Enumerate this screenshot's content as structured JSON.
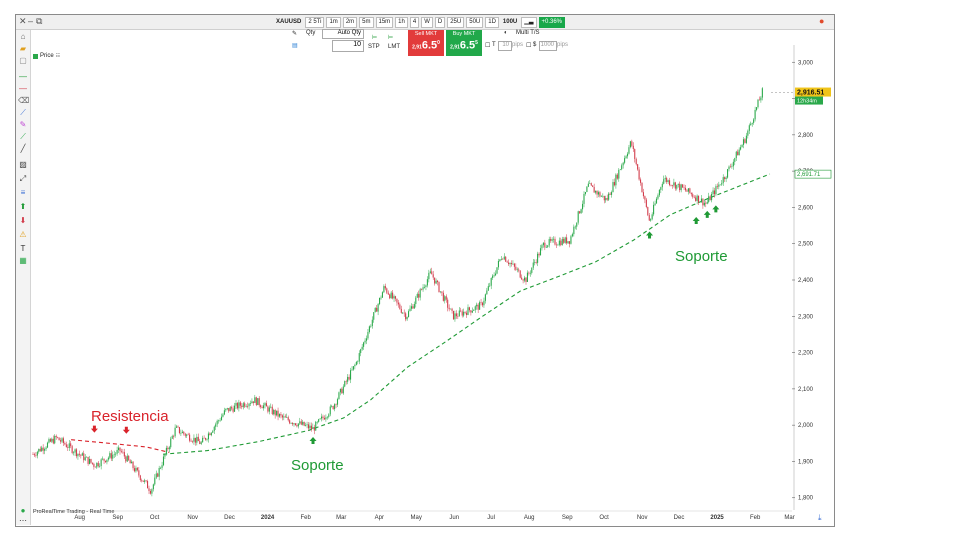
{
  "window": {
    "controls": [
      "✕",
      "–",
      "⧉"
    ],
    "toolbar": {
      "symbol": "XAUUSD",
      "timeframes": [
        "2 5Ti",
        "1m",
        "2m",
        "5m",
        "15m",
        "1h",
        "4",
        "W",
        "D"
      ],
      "unit_buttons": [
        "25U",
        "50U",
        "1D"
      ],
      "units": "100U",
      "change_pct": "+0.36%"
    }
  },
  "order_panel": {
    "qty_label": "Qty",
    "auto_qty_label": "Auto Qty",
    "qty_value": "10",
    "stp_label": "STP",
    "lmt_label": "LMT",
    "sell_label": "Sell MKT",
    "buy_label": "Buy MKT",
    "sell_prefix": "2,91",
    "sell_price": "6.5",
    "sell_sup": "0",
    "buy_prefix": "2,91",
    "buy_price": "6.5",
    "buy_sup": "5",
    "multi_ts_label": "Multi T/S",
    "t_label": "T",
    "t_value": "10",
    "t_unit": "pips",
    "s_label": "$",
    "s_value": "1000",
    "s_unit": "pips"
  },
  "price_label": "Price",
  "footer_text": "ProRealTime Trading - Real Time",
  "colors": {
    "up": "#2aa84a",
    "down": "#d23b4a",
    "support": "#1f9a35",
    "resistance": "#d9232b",
    "current_price_bg": "#f0c419",
    "timer_bg": "#2aa84a"
  },
  "chart_data": {
    "type": "candlestick",
    "y_axis_ticks": [
      "3,000",
      "2,900",
      "2,800",
      "2,700",
      "2,600",
      "2,500",
      "2,400",
      "2,300",
      "2,200",
      "2,100",
      "2,000",
      "1,900",
      "1,800"
    ],
    "ylim": [
      1780,
      3020
    ],
    "x_axis_labels": [
      "Aug",
      "Sep",
      "Oct",
      "Nov",
      "Dec",
      "2024",
      "Feb",
      "Mar",
      "Apr",
      "May",
      "Jun",
      "Jul",
      "Aug",
      "Sep",
      "Oct",
      "Nov",
      "Dec",
      "2025",
      "Feb",
      "Mar"
    ],
    "current_price": "2,916.51",
    "countdown": "12h34m",
    "ma_label": "2,691.71",
    "ma_value": 2691.71,
    "price_path": [
      {
        "t": "2023-07-01",
        "p": 1920
      },
      {
        "t": "2023-07-20",
        "p": 1965
      },
      {
        "t": "2023-08-20",
        "p": 1890
      },
      {
        "t": "2023-09-10",
        "p": 1930
      },
      {
        "t": "2023-10-05",
        "p": 1820
      },
      {
        "t": "2023-10-25",
        "p": 1990
      },
      {
        "t": "2023-11-15",
        "p": 1950
      },
      {
        "t": "2023-12-05",
        "p": 2040
      },
      {
        "t": "2023-12-28",
        "p": 2070
      },
      {
        "t": "2024-01-20",
        "p": 2020
      },
      {
        "t": "2024-02-14",
        "p": 1990
      },
      {
        "t": "2024-03-01",
        "p": 2050
      },
      {
        "t": "2024-03-20",
        "p": 2170
      },
      {
        "t": "2024-04-12",
        "p": 2380
      },
      {
        "t": "2024-04-30",
        "p": 2300
      },
      {
        "t": "2024-05-20",
        "p": 2420
      },
      {
        "t": "2024-06-07",
        "p": 2300
      },
      {
        "t": "2024-06-30",
        "p": 2330
      },
      {
        "t": "2024-07-17",
        "p": 2470
      },
      {
        "t": "2024-08-05",
        "p": 2400
      },
      {
        "t": "2024-08-20",
        "p": 2500
      },
      {
        "t": "2024-09-10",
        "p": 2510
      },
      {
        "t": "2024-09-25",
        "p": 2660
      },
      {
        "t": "2024-10-10",
        "p": 2620
      },
      {
        "t": "2024-10-30",
        "p": 2780
      },
      {
        "t": "2024-11-14",
        "p": 2560
      },
      {
        "t": "2024-11-25",
        "p": 2680
      },
      {
        "t": "2024-12-12",
        "p": 2650
      },
      {
        "t": "2024-12-30",
        "p": 2610
      },
      {
        "t": "2025-01-15",
        "p": 2690
      },
      {
        "t": "2025-01-31",
        "p": 2790
      },
      {
        "t": "2025-02-14",
        "p": 2920
      }
    ],
    "support_ma": [
      {
        "t": "2023-10-15",
        "p": 1920
      },
      {
        "t": "2023-11-20",
        "p": 1930
      },
      {
        "t": "2024-01-01",
        "p": 1955
      },
      {
        "t": "2024-02-10",
        "p": 1985
      },
      {
        "t": "2024-03-10",
        "p": 2020
      },
      {
        "t": "2024-04-01",
        "p": 2070
      },
      {
        "t": "2024-05-01",
        "p": 2160
      },
      {
        "t": "2024-06-01",
        "p": 2230
      },
      {
        "t": "2024-07-01",
        "p": 2300
      },
      {
        "t": "2024-08-01",
        "p": 2370
      },
      {
        "t": "2024-09-01",
        "p": 2410
      },
      {
        "t": "2024-10-01",
        "p": 2450
      },
      {
        "t": "2024-11-01",
        "p": 2510
      },
      {
        "t": "2024-12-01",
        "p": 2580
      },
      {
        "t": "2025-01-01",
        "p": 2625
      },
      {
        "t": "2025-02-20",
        "p": 2692
      }
    ],
    "resistance_ma": [
      {
        "t": "2023-08-01",
        "p": 1960
      },
      {
        "t": "2023-09-01",
        "p": 1950
      },
      {
        "t": "2023-10-01",
        "p": 1940
      },
      {
        "t": "2023-10-20",
        "p": 1925
      }
    ],
    "annotations": [
      {
        "text": "Resistencia",
        "color": "#d9232b"
      },
      {
        "text": "Soporte",
        "color": "#1f9a35"
      },
      {
        "text": "Soporte",
        "color": "#1f9a35"
      }
    ],
    "down_arrows": [
      {
        "t": "2023-08-20",
        "p": 1985
      },
      {
        "t": "2023-09-15",
        "p": 1982
      }
    ],
    "up_arrows": [
      {
        "t": "2024-02-14",
        "p": 1962
      },
      {
        "t": "2024-11-14",
        "p": 2528
      },
      {
        "t": "2024-12-22",
        "p": 2568
      },
      {
        "t": "2024-12-31",
        "p": 2585
      },
      {
        "t": "2025-01-07",
        "p": 2600
      }
    ]
  }
}
